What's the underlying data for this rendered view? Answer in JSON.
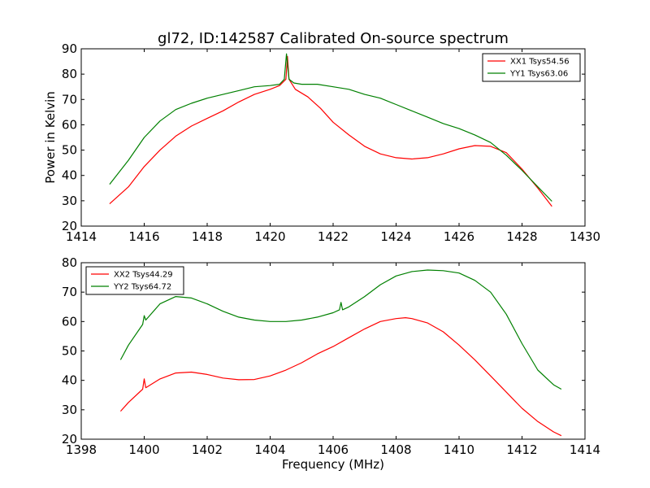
{
  "chart_data": [
    {
      "type": "line",
      "title": "gl72, ID:142587 Calibrated On-source spectrum",
      "xlabel": "",
      "ylabel": "Power in Kelvin",
      "xlim": [
        1414,
        1430
      ],
      "ylim": [
        20,
        90
      ],
      "xticks": [
        "1414",
        "1416",
        "1418",
        "1420",
        "1422",
        "1424",
        "1426",
        "1428",
        "1430"
      ],
      "yticks": [
        "20",
        "30",
        "40",
        "50",
        "60",
        "70",
        "80",
        "90"
      ],
      "legend_position": "top-right",
      "series": [
        {
          "name": "XX1 Tsys54.56",
          "color": "#ff0000",
          "x": [
            1414.9,
            1415.5,
            1416.0,
            1416.5,
            1417.0,
            1417.5,
            1418.0,
            1418.5,
            1419.0,
            1419.5,
            1420.0,
            1420.3,
            1420.5,
            1420.55,
            1420.6,
            1420.8,
            1421.2,
            1421.6,
            1422.0,
            1422.5,
            1423.0,
            1423.5,
            1424.0,
            1424.5,
            1425.0,
            1425.5,
            1426.0,
            1426.5,
            1427.0,
            1427.5,
            1428.0,
            1428.5,
            1428.95
          ],
          "y": [
            28.8,
            35.5,
            43.5,
            50.0,
            55.5,
            59.5,
            62.5,
            65.5,
            69.0,
            72.0,
            74.0,
            75.5,
            78.0,
            87.0,
            78.0,
            74.0,
            71.0,
            66.5,
            61.0,
            56.0,
            51.5,
            48.5,
            47.0,
            46.5,
            47.0,
            48.5,
            50.5,
            51.8,
            51.5,
            49.0,
            42.5,
            35.0,
            27.8
          ]
        },
        {
          "name": "YY1 Tsys63.06",
          "color": "#008000",
          "x": [
            1414.9,
            1415.5,
            1416.0,
            1416.5,
            1417.0,
            1417.5,
            1418.0,
            1418.5,
            1419.0,
            1419.5,
            1420.0,
            1420.3,
            1420.45,
            1420.52,
            1420.6,
            1420.75,
            1421.0,
            1421.5,
            1422.0,
            1422.5,
            1423.0,
            1423.5,
            1424.0,
            1424.5,
            1425.0,
            1425.5,
            1426.0,
            1426.5,
            1427.0,
            1427.5,
            1428.0,
            1428.5,
            1428.95
          ],
          "y": [
            36.5,
            46.0,
            55.0,
            61.5,
            66.0,
            68.5,
            70.5,
            72.0,
            73.5,
            75.0,
            75.5,
            76.0,
            78.0,
            88.0,
            78.0,
            76.5,
            76.0,
            76.0,
            75.0,
            74.0,
            72.0,
            70.5,
            68.0,
            65.5,
            63.0,
            60.5,
            58.5,
            56.0,
            53.0,
            48.0,
            42.0,
            35.5,
            29.8
          ]
        }
      ]
    },
    {
      "type": "line",
      "title": "",
      "xlabel": "Frequency (MHz)",
      "ylabel": "",
      "xlim": [
        1398,
        1414
      ],
      "ylim": [
        20,
        80
      ],
      "xticks": [
        "1398",
        "1400",
        "1402",
        "1404",
        "1406",
        "1408",
        "1410",
        "1412",
        "1414"
      ],
      "yticks": [
        "20",
        "30",
        "40",
        "50",
        "60",
        "70",
        "80"
      ],
      "legend_position": "top-left",
      "series": [
        {
          "name": "XX2 Tsys44.29",
          "color": "#ff0000",
          "x": [
            1399.25,
            1399.5,
            1399.95,
            1400.0,
            1400.05,
            1400.5,
            1401.0,
            1401.5,
            1402.0,
            1402.5,
            1403.0,
            1403.5,
            1404.0,
            1404.5,
            1405.0,
            1405.5,
            1406.0,
            1406.5,
            1407.0,
            1407.5,
            1408.0,
            1408.3,
            1408.5,
            1409.0,
            1409.5,
            1410.0,
            1410.5,
            1411.0,
            1411.5,
            1412.0,
            1412.5,
            1413.0,
            1413.25
          ],
          "y": [
            29.5,
            32.5,
            37.0,
            40.5,
            37.5,
            40.5,
            42.5,
            42.8,
            42.0,
            40.8,
            40.2,
            40.3,
            41.5,
            43.5,
            46.0,
            49.0,
            51.5,
            54.5,
            57.5,
            60.0,
            61.0,
            61.3,
            61.0,
            59.5,
            56.5,
            52.0,
            47.0,
            41.5,
            36.0,
            30.5,
            26.0,
            22.5,
            21.2
          ]
        },
        {
          "name": "YY2 Tsys64.72",
          "color": "#008000",
          "x": [
            1399.25,
            1399.5,
            1399.95,
            1400.0,
            1400.05,
            1400.5,
            1401.0,
            1401.5,
            1402.0,
            1402.5,
            1403.0,
            1403.5,
            1404.0,
            1404.5,
            1405.0,
            1405.5,
            1406.0,
            1406.2,
            1406.25,
            1406.3,
            1406.5,
            1407.0,
            1407.5,
            1408.0,
            1408.5,
            1409.0,
            1409.5,
            1410.0,
            1410.5,
            1411.0,
            1411.5,
            1412.0,
            1412.5,
            1413.0,
            1413.25
          ],
          "y": [
            47.0,
            52.0,
            59.0,
            62.0,
            60.5,
            66.0,
            68.5,
            68.0,
            66.0,
            63.5,
            61.5,
            60.5,
            60.0,
            60.0,
            60.5,
            61.5,
            63.0,
            64.0,
            66.5,
            64.0,
            65.0,
            68.5,
            72.5,
            75.5,
            77.0,
            77.5,
            77.3,
            76.5,
            74.0,
            70.0,
            62.5,
            52.5,
            43.5,
            38.5,
            37.0
          ]
        }
      ]
    }
  ]
}
